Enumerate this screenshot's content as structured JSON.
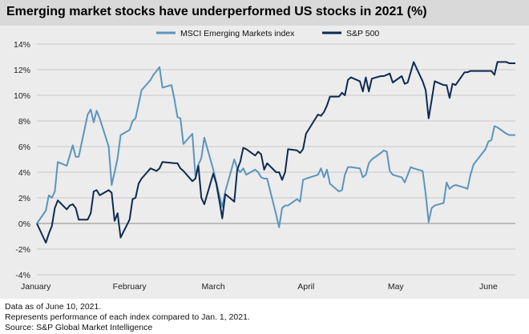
{
  "chart_data": {
    "type": "line",
    "title": "Emerging market stocks have underperformed US stocks in 2021 (%)",
    "x_ticks": [
      "January",
      "February",
      "March",
      "April",
      "May",
      "June"
    ],
    "x_range": [
      "2021-01-01",
      "2021-06-10"
    ],
    "ylim": [
      -4,
      14
    ],
    "y_ticks": [
      -4,
      -2,
      0,
      2,
      4,
      6,
      8,
      10,
      12,
      14
    ],
    "y_tick_labels": [
      "-4%",
      "-2%",
      "0%",
      "2%",
      "4%",
      "6%",
      "8%",
      "10%",
      "12%",
      "14%"
    ],
    "grid": "horizontal",
    "legend": "top-center",
    "series": [
      {
        "name": "MSCI Emerging Markets index",
        "color": "#5b95be",
        "points": [
          [
            "2021-01-01",
            0.0
          ],
          [
            "2021-01-04",
            1.0
          ],
          [
            "2021-01-05",
            2.2
          ],
          [
            "2021-01-06",
            2.0
          ],
          [
            "2021-01-07",
            2.5
          ],
          [
            "2021-01-08",
            4.8
          ],
          [
            "2021-01-11",
            4.5
          ],
          [
            "2021-01-12",
            5.3
          ],
          [
            "2021-01-13",
            6.1
          ],
          [
            "2021-01-14",
            5.2
          ],
          [
            "2021-01-15",
            5.2
          ],
          [
            "2021-01-18",
            8.5
          ],
          [
            "2021-01-19",
            8.9
          ],
          [
            "2021-01-20",
            7.9
          ],
          [
            "2021-01-21",
            8.8
          ],
          [
            "2021-01-22",
            8.2
          ],
          [
            "2021-01-25",
            6.0
          ],
          [
            "2021-01-26",
            3.0
          ],
          [
            "2021-01-27",
            4.0
          ],
          [
            "2021-01-28",
            5.1
          ],
          [
            "2021-01-29",
            6.9
          ],
          [
            "2021-02-01",
            7.3
          ],
          [
            "2021-02-02",
            8.0
          ],
          [
            "2021-02-03",
            8.2
          ],
          [
            "2021-02-04",
            9.3
          ],
          [
            "2021-02-05",
            10.4
          ],
          [
            "2021-02-08",
            11.2
          ],
          [
            "2021-02-09",
            11.6
          ],
          [
            "2021-02-10",
            11.9
          ],
          [
            "2021-02-11",
            12.2
          ],
          [
            "2021-02-12",
            10.6
          ],
          [
            "2021-02-15",
            10.8
          ],
          [
            "2021-02-16",
            9.7
          ],
          [
            "2021-02-17",
            8.3
          ],
          [
            "2021-02-18",
            8.2
          ],
          [
            "2021-02-19",
            6.2
          ],
          [
            "2021-02-22",
            7.0
          ],
          [
            "2021-02-23",
            3.7
          ],
          [
            "2021-02-24",
            4.6
          ],
          [
            "2021-02-25",
            5.1
          ],
          [
            "2021-02-26",
            6.7
          ],
          [
            "2021-03-01",
            4.2
          ],
          [
            "2021-03-02",
            3.2
          ],
          [
            "2021-03-03",
            2.2
          ],
          [
            "2021-03-04",
            1.3
          ],
          [
            "2021-03-05",
            2.5
          ],
          [
            "2021-03-08",
            5.0
          ],
          [
            "2021-03-09",
            4.3
          ],
          [
            "2021-03-10",
            4.0
          ],
          [
            "2021-03-11",
            4.3
          ],
          [
            "2021-03-12",
            3.8
          ],
          [
            "2021-03-15",
            4.2
          ],
          [
            "2021-03-16",
            4.0
          ],
          [
            "2021-03-17",
            3.6
          ],
          [
            "2021-03-18",
            3.5
          ],
          [
            "2021-03-19",
            3.5
          ],
          [
            "2021-03-22",
            0.7
          ],
          [
            "2021-03-23",
            -0.3
          ],
          [
            "2021-03-24",
            1.2
          ],
          [
            "2021-03-25",
            1.4
          ],
          [
            "2021-03-26",
            1.4
          ],
          [
            "2021-03-29",
            1.9
          ],
          [
            "2021-03-30",
            1.7
          ],
          [
            "2021-03-31",
            3.4
          ],
          [
            "2021-04-01",
            3.5
          ],
          [
            "2021-04-05",
            3.8
          ],
          [
            "2021-04-06",
            4.3
          ],
          [
            "2021-04-07",
            3.6
          ],
          [
            "2021-04-08",
            4.2
          ],
          [
            "2021-04-09",
            3.1
          ],
          [
            "2021-04-12",
            2.5
          ],
          [
            "2021-04-13",
            2.6
          ],
          [
            "2021-04-14",
            3.8
          ],
          [
            "2021-04-15",
            4.4
          ],
          [
            "2021-04-16",
            4.4
          ],
          [
            "2021-04-19",
            4.3
          ],
          [
            "2021-04-20",
            3.6
          ],
          [
            "2021-04-21",
            3.8
          ],
          [
            "2021-04-22",
            4.7
          ],
          [
            "2021-04-23",
            5.0
          ],
          [
            "2021-04-26",
            5.5
          ],
          [
            "2021-04-27",
            5.7
          ],
          [
            "2021-04-28",
            5.6
          ],
          [
            "2021-04-29",
            4.1
          ],
          [
            "2021-04-30",
            3.8
          ],
          [
            "2021-05-03",
            3.6
          ],
          [
            "2021-05-04",
            3.2
          ],
          [
            "2021-05-05",
            3.8
          ],
          [
            "2021-05-06",
            4.4
          ],
          [
            "2021-05-07",
            4.3
          ],
          [
            "2021-05-10",
            4.1
          ],
          [
            "2021-05-11",
            2.3
          ],
          [
            "2021-05-12",
            0.1
          ],
          [
            "2021-05-13",
            1.2
          ],
          [
            "2021-05-14",
            1.4
          ],
          [
            "2021-05-17",
            1.6
          ],
          [
            "2021-05-18",
            3.2
          ],
          [
            "2021-05-19",
            2.7
          ],
          [
            "2021-05-20",
            2.9
          ],
          [
            "2021-05-21",
            3.0
          ],
          [
            "2021-05-24",
            2.8
          ],
          [
            "2021-05-25",
            2.7
          ],
          [
            "2021-05-26",
            3.8
          ],
          [
            "2021-05-27",
            4.6
          ],
          [
            "2021-05-28",
            4.9
          ],
          [
            "2021-05-31",
            5.8
          ],
          [
            "2021-06-01",
            6.4
          ],
          [
            "2021-06-02",
            6.5
          ],
          [
            "2021-06-03",
            7.6
          ],
          [
            "2021-06-04",
            7.5
          ],
          [
            "2021-06-07",
            7.0
          ],
          [
            "2021-06-08",
            6.9
          ],
          [
            "2021-06-09",
            6.9
          ],
          [
            "2021-06-10",
            6.9
          ]
        ]
      },
      {
        "name": "S&P 500",
        "color": "#0e2a52",
        "points": [
          [
            "2021-01-01",
            0.0
          ],
          [
            "2021-01-04",
            -1.5
          ],
          [
            "2021-01-05",
            -0.8
          ],
          [
            "2021-01-06",
            -0.2
          ],
          [
            "2021-01-07",
            1.2
          ],
          [
            "2021-01-08",
            1.8
          ],
          [
            "2021-01-11",
            1.1
          ],
          [
            "2021-01-12",
            1.4
          ],
          [
            "2021-01-13",
            1.5
          ],
          [
            "2021-01-14",
            1.2
          ],
          [
            "2021-01-15",
            0.3
          ],
          [
            "2021-01-18",
            0.3
          ],
          [
            "2021-01-19",
            0.8
          ],
          [
            "2021-01-20",
            2.5
          ],
          [
            "2021-01-21",
            2.6
          ],
          [
            "2021-01-22",
            2.2
          ],
          [
            "2021-01-25",
            2.6
          ],
          [
            "2021-01-26",
            2.4
          ],
          [
            "2021-01-27",
            0.2
          ],
          [
            "2021-01-28",
            0.8
          ],
          [
            "2021-01-29",
            -1.1
          ],
          [
            "2021-02-01",
            0.3
          ],
          [
            "2021-02-02",
            1.9
          ],
          [
            "2021-02-03",
            2.0
          ],
          [
            "2021-02-04",
            3.1
          ],
          [
            "2021-02-05",
            3.5
          ],
          [
            "2021-02-08",
            4.3
          ],
          [
            "2021-02-09",
            4.2
          ],
          [
            "2021-02-10",
            4.1
          ],
          [
            "2021-02-11",
            4.3
          ],
          [
            "2021-02-12",
            4.8
          ],
          [
            "2021-02-16",
            4.7
          ],
          [
            "2021-02-17",
            4.7
          ],
          [
            "2021-02-18",
            4.3
          ],
          [
            "2021-02-19",
            4.1
          ],
          [
            "2021-02-22",
            3.3
          ],
          [
            "2021-02-23",
            3.5
          ],
          [
            "2021-02-24",
            4.5
          ],
          [
            "2021-02-25",
            2.0
          ],
          [
            "2021-02-26",
            1.5
          ],
          [
            "2021-03-01",
            3.9
          ],
          [
            "2021-03-02",
            3.1
          ],
          [
            "2021-03-03",
            1.8
          ],
          [
            "2021-03-04",
            0.4
          ],
          [
            "2021-03-05",
            2.3
          ],
          [
            "2021-03-08",
            1.7
          ],
          [
            "2021-03-09",
            4.2
          ],
          [
            "2021-03-10",
            4.8
          ],
          [
            "2021-03-11",
            5.9
          ],
          [
            "2021-03-12",
            5.8
          ],
          [
            "2021-03-15",
            5.3
          ],
          [
            "2021-03-16",
            5.6
          ],
          [
            "2021-03-17",
            5.4
          ],
          [
            "2021-03-18",
            4.2
          ],
          [
            "2021-03-19",
            4.7
          ],
          [
            "2021-03-22",
            4.0
          ],
          [
            "2021-03-23",
            4.0
          ],
          [
            "2021-03-24",
            3.4
          ],
          [
            "2021-03-25",
            4.0
          ],
          [
            "2021-03-26",
            5.8
          ],
          [
            "2021-03-29",
            5.7
          ],
          [
            "2021-03-30",
            5.5
          ],
          [
            "2021-03-31",
            5.8
          ],
          [
            "2021-04-01",
            7.0
          ],
          [
            "2021-04-05",
            8.5
          ],
          [
            "2021-04-06",
            8.4
          ],
          [
            "2021-04-07",
            8.7
          ],
          [
            "2021-04-08",
            9.2
          ],
          [
            "2021-04-09",
            9.9
          ],
          [
            "2021-04-12",
            9.9
          ],
          [
            "2021-04-13",
            10.2
          ],
          [
            "2021-04-14",
            10.0
          ],
          [
            "2021-04-15",
            11.2
          ],
          [
            "2021-04-16",
            11.4
          ],
          [
            "2021-04-19",
            11.1
          ],
          [
            "2021-04-20",
            10.3
          ],
          [
            "2021-04-21",
            11.4
          ],
          [
            "2021-04-22",
            10.3
          ],
          [
            "2021-04-23",
            11.3
          ],
          [
            "2021-04-26",
            11.5
          ],
          [
            "2021-04-27",
            11.5
          ],
          [
            "2021-04-28",
            11.6
          ],
          [
            "2021-04-29",
            11.7
          ],
          [
            "2021-04-30",
            11.0
          ],
          [
            "2021-05-03",
            11.5
          ],
          [
            "2021-05-04",
            10.9
          ],
          [
            "2021-05-05",
            11.0
          ],
          [
            "2021-05-06",
            11.8
          ],
          [
            "2021-05-07",
            12.6
          ],
          [
            "2021-05-10",
            11.1
          ],
          [
            "2021-05-11",
            10.4
          ],
          [
            "2021-05-12",
            8.2
          ],
          [
            "2021-05-13",
            9.6
          ],
          [
            "2021-05-14",
            11.1
          ],
          [
            "2021-05-17",
            10.8
          ],
          [
            "2021-05-18",
            10.8
          ],
          [
            "2021-05-19",
            9.8
          ],
          [
            "2021-05-20",
            10.9
          ],
          [
            "2021-05-21",
            10.8
          ],
          [
            "2021-05-24",
            11.8
          ],
          [
            "2021-05-25",
            11.8
          ],
          [
            "2021-05-26",
            11.9
          ],
          [
            "2021-05-27",
            11.9
          ],
          [
            "2021-05-28",
            11.9
          ],
          [
            "2021-06-01",
            11.9
          ],
          [
            "2021-06-02",
            11.9
          ],
          [
            "2021-06-03",
            11.6
          ],
          [
            "2021-06-04",
            12.6
          ],
          [
            "2021-06-07",
            12.6
          ],
          [
            "2021-06-08",
            12.5
          ],
          [
            "2021-06-09",
            12.5
          ],
          [
            "2021-06-10",
            12.5
          ]
        ]
      }
    ]
  },
  "footnotes": {
    "line1": "Data as of June 10, 2021.",
    "line2": "Represents performance of each index compared to Jan. 1, 2021.",
    "source": "Source: S&P Global Market Intelligence"
  }
}
